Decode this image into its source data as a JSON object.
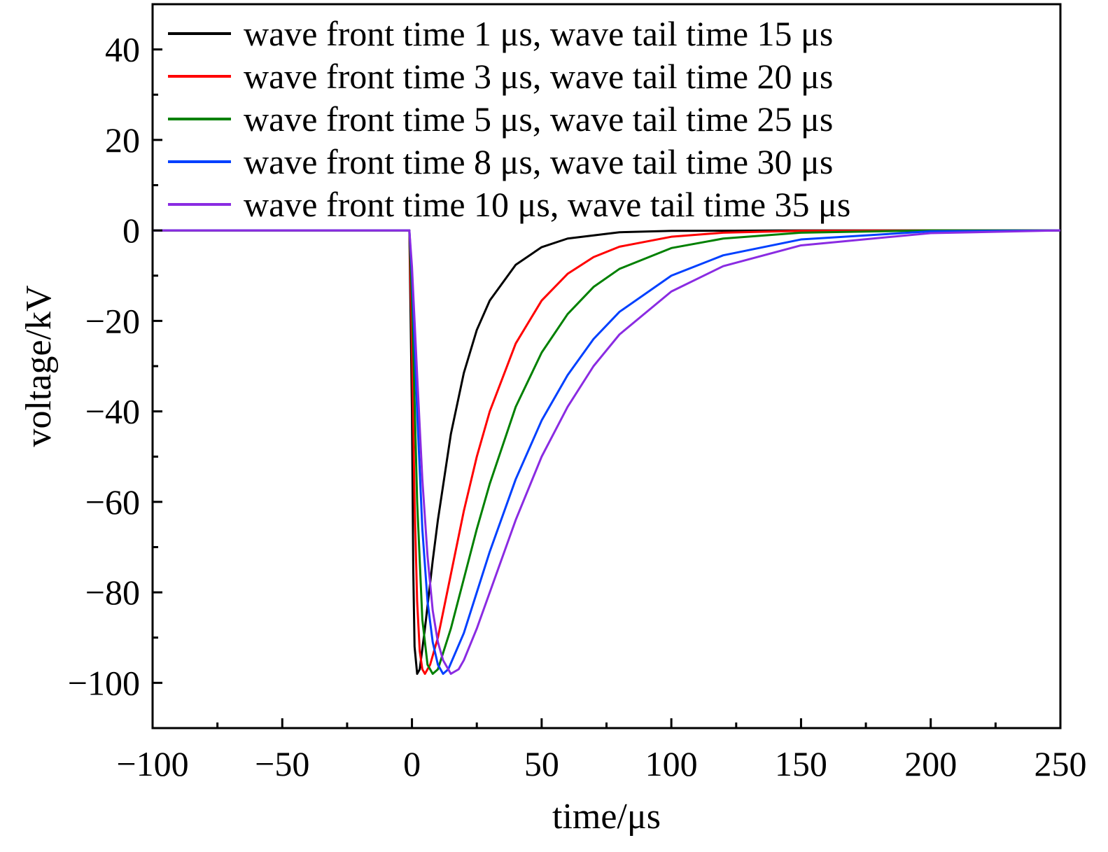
{
  "chart_data": {
    "type": "line",
    "title": "",
    "xlabel": "time/μs",
    "ylabel": "voltage/kV",
    "xlim": [
      -100,
      250
    ],
    "ylim": [
      -110,
      50
    ],
    "xticks": [
      -100,
      -50,
      0,
      50,
      100,
      150,
      200,
      250
    ],
    "xtick_labels": [
      "−100",
      "−50",
      "0",
      "50",
      "100",
      "150",
      "200",
      "250"
    ],
    "yticks": [
      -100,
      -80,
      -60,
      -40,
      -20,
      0,
      20,
      40
    ],
    "ytick_labels": [
      "−100",
      "−80",
      "−60",
      "−40",
      "−20",
      "0",
      "20",
      "40"
    ],
    "grid": false,
    "legend_position": "top",
    "series": [
      {
        "name": "wave front time 1 μs, wave tail time 15 μs",
        "color": "#000000",
        "x": [
          -100,
          -1,
          0,
          0.5,
          1,
          2,
          3,
          5,
          8,
          10,
          15,
          20,
          25,
          30,
          40,
          50,
          60,
          80,
          100,
          150,
          200,
          250
        ],
        "y": [
          0,
          0,
          -40,
          -75,
          -92,
          -98,
          -97,
          -88,
          -73,
          -64,
          -45,
          -31.5,
          -22,
          -15.5,
          -7.6,
          -3.7,
          -1.8,
          -0.4,
          -0.1,
          0,
          0,
          0
        ]
      },
      {
        "name": "wave front time 3 μs, wave tail time 20 μs",
        "color": "#ff0000",
        "x": [
          -100,
          -1,
          0,
          1,
          2,
          3,
          4,
          5,
          7,
          10,
          15,
          20,
          25,
          30,
          40,
          50,
          60,
          70,
          80,
          100,
          120,
          150,
          200,
          250
        ],
        "y": [
          0,
          0,
          -25,
          -60,
          -82,
          -93,
          -97,
          -98,
          -96,
          -90,
          -76,
          -62,
          -50,
          -40,
          -25,
          -15.5,
          -9.6,
          -5.9,
          -3.6,
          -1.4,
          -0.5,
          -0.1,
          0,
          0
        ]
      },
      {
        "name": "wave front time 5 μs, wave tail time 25 μs",
        "color": "#008000",
        "x": [
          -100,
          -1,
          0,
          2,
          4,
          6,
          8,
          10,
          15,
          20,
          25,
          30,
          40,
          50,
          60,
          70,
          80,
          100,
          120,
          150,
          200,
          250
        ],
        "y": [
          0,
          0,
          -15,
          -60,
          -86,
          -96,
          -98,
          -97,
          -88,
          -77,
          -66,
          -56,
          -39,
          -27,
          -18.5,
          -12.5,
          -8.5,
          -3.9,
          -1.8,
          -0.5,
          0,
          0
        ]
      },
      {
        "name": "wave front time 8 μs, wave tail time 30 μs",
        "color": "#0040ff",
        "x": [
          -100,
          -1,
          0,
          2,
          4,
          6,
          8,
          10,
          12,
          14,
          20,
          25,
          30,
          40,
          50,
          60,
          70,
          80,
          100,
          120,
          150,
          200,
          250
        ],
        "y": [
          0,
          0,
          -10,
          -40,
          -66,
          -82,
          -91,
          -96,
          -98,
          -97,
          -89,
          -80,
          -71,
          -55,
          -42,
          -32,
          -24,
          -18,
          -10,
          -5.5,
          -2,
          -0.2,
          0
        ]
      },
      {
        "name": "wave front time 10 μs, wave tail time 35 μs",
        "color": "#8a2be2",
        "x": [
          -100,
          -1,
          0,
          2,
          4,
          6,
          8,
          10,
          12,
          15,
          18,
          20,
          25,
          30,
          40,
          50,
          60,
          70,
          80,
          100,
          120,
          150,
          200,
          250
        ],
        "y": [
          0,
          0,
          -8,
          -32,
          -55,
          -72,
          -84,
          -91,
          -95,
          -98,
          -97,
          -95,
          -88,
          -80,
          -64,
          -50,
          -39,
          -30,
          -23,
          -13.5,
          -7.9,
          -3.3,
          -0.6,
          0
        ]
      }
    ]
  }
}
